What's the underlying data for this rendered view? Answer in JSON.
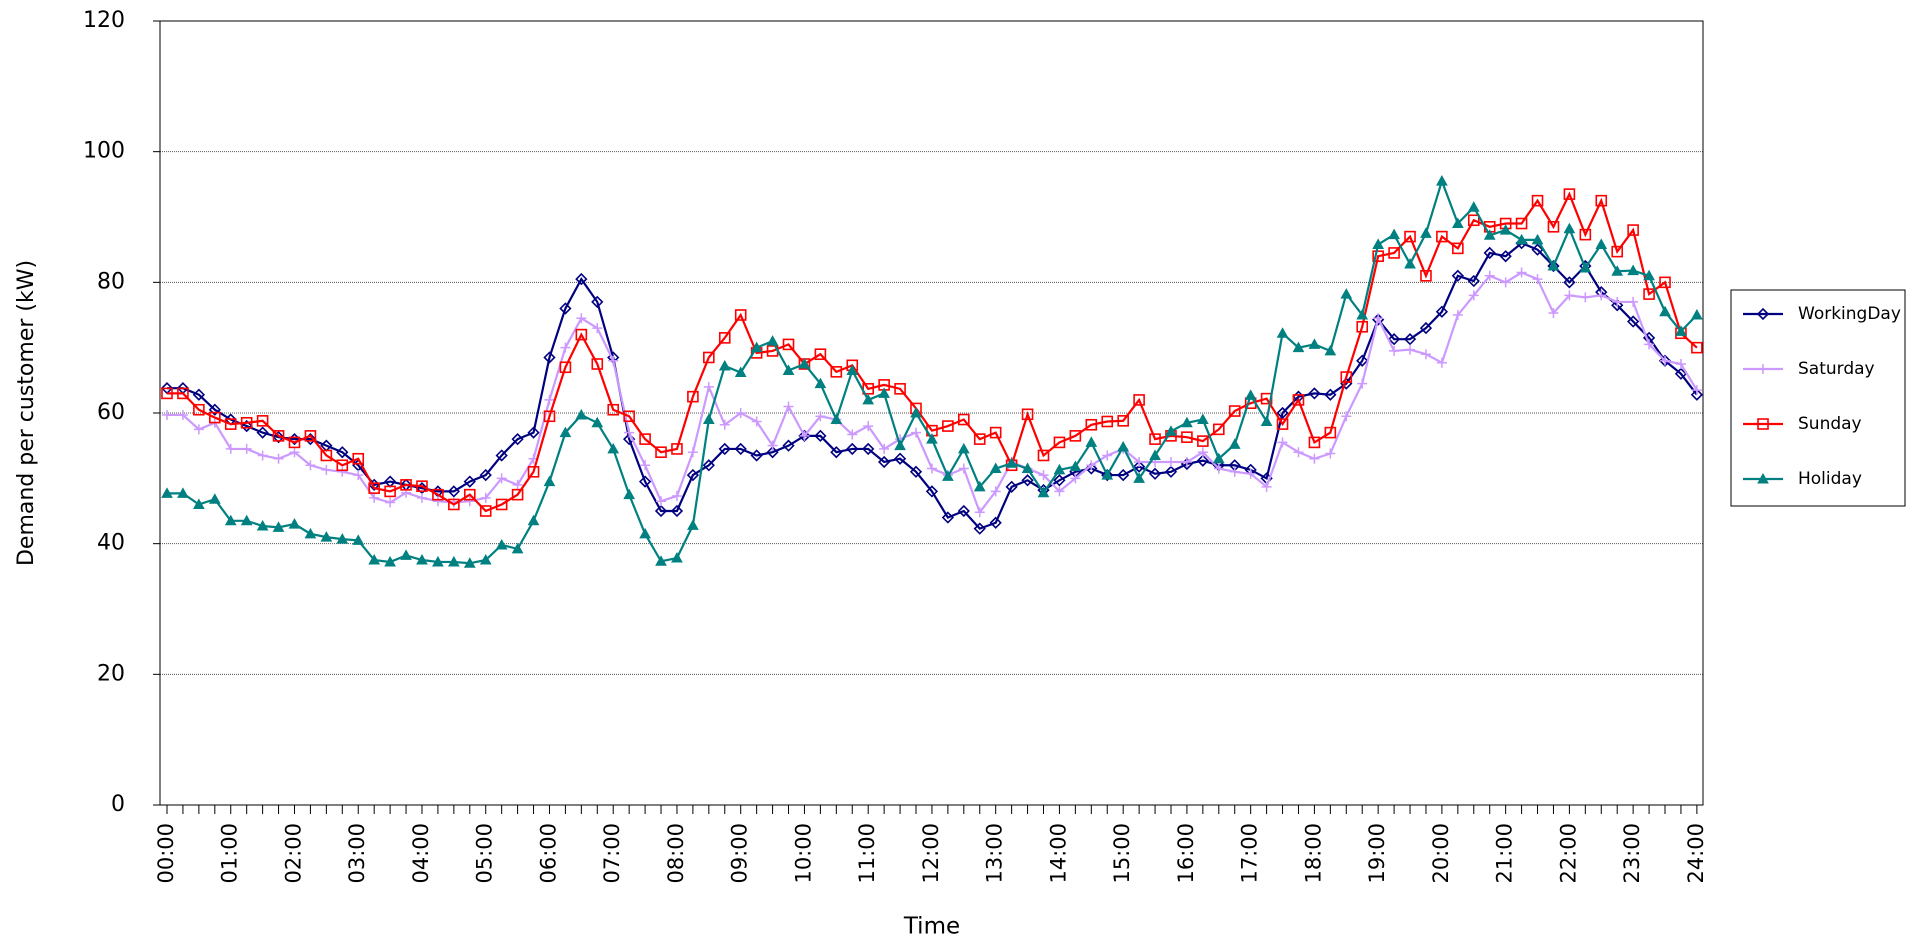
{
  "chart_data": {
    "type": "line",
    "x_label": "Time",
    "y_label": "Demand per customer (kW)",
    "categories": [
      "00:00",
      null,
      null,
      null,
      "01:00",
      null,
      null,
      null,
      "02:00",
      null,
      null,
      null,
      "03:00",
      null,
      null,
      null,
      "04:00",
      null,
      null,
      null,
      "05:00",
      null,
      null,
      null,
      "06:00",
      null,
      null,
      null,
      "07:00",
      null,
      null,
      null,
      "08:00",
      null,
      null,
      null,
      "09:00",
      null,
      null,
      null,
      "10:00",
      null,
      null,
      null,
      "11:00",
      null,
      null,
      null,
      "12:00",
      null,
      null,
      null,
      "13:00",
      null,
      null,
      null,
      "14:00",
      null,
      null,
      null,
      "15:00",
      null,
      null,
      null,
      "16:00",
      null,
      null,
      null,
      "17:00",
      null,
      null,
      null,
      "18:00",
      null,
      null,
      null,
      "19:00",
      null,
      null,
      null,
      "20:00",
      null,
      null,
      null,
      "21:00",
      null,
      null,
      null,
      "22:00",
      null,
      null,
      null,
      "23:00",
      null,
      null,
      null,
      "24:00"
    ],
    "series": [
      {
        "name": "WorkingDay",
        "color": "#000080",
        "marker": "diamond",
        "values": [
          63.8,
          63.8,
          62.8,
          60.5,
          59,
          58,
          57,
          56.3,
          56,
          56,
          55,
          54,
          52,
          49,
          49.5,
          49,
          48.5,
          48,
          48,
          49.5,
          50.5,
          53.5,
          56,
          57,
          68.5,
          76,
          80.5,
          77,
          68.5,
          56,
          49.5,
          45,
          45,
          50.5,
          52,
          54.5,
          54.5,
          53.5,
          54,
          55,
          56.5,
          56.5,
          54,
          54.5,
          54.5,
          52.5,
          53,
          51,
          48,
          44,
          45,
          42.3,
          43.2,
          48.7,
          49.7,
          48.2,
          49.7,
          51,
          51.5,
          50.5,
          50.5,
          51.8,
          50.7,
          51,
          52.2,
          52.7,
          52,
          52,
          51.3,
          50,
          60,
          62.5,
          63,
          62.8,
          64.5,
          68,
          74.3,
          71.3,
          71.3,
          73,
          75.5,
          81,
          80.2,
          84.5,
          84,
          86,
          85,
          82.5,
          80,
          82.5,
          78.5,
          76.5,
          74,
          71.5,
          68,
          66,
          62.8
        ]
      },
      {
        "name": "Saturday",
        "color": "#cc99ff",
        "marker": "plus",
        "values": [
          59.7,
          59.7,
          57.5,
          58.5,
          54.5,
          54.5,
          53.5,
          53,
          54,
          52,
          51.3,
          51,
          50.5,
          47,
          46.3,
          47.8,
          47,
          46.5,
          46.3,
          46.5,
          47,
          50,
          49,
          53,
          62,
          70,
          74.5,
          73,
          68,
          57,
          52,
          46.5,
          47.3,
          54,
          64,
          58.2,
          60,
          58.7,
          55,
          61,
          56.5,
          59.5,
          59,
          56.7,
          58,
          54.5,
          56,
          57,
          51.5,
          50.5,
          51.5,
          44.8,
          48,
          52.5,
          51.5,
          50.5,
          48,
          50,
          52,
          53.5,
          54.5,
          52.5,
          52.5,
          52.5,
          52.5,
          54,
          51.5,
          51,
          50.7,
          48.7,
          55.5,
          54,
          53,
          53.8,
          59.5,
          64.5,
          74.5,
          69.5,
          69.7,
          69,
          67.7,
          75,
          78,
          81,
          80,
          81.5,
          80.5,
          75.3,
          78,
          77.7,
          78,
          77,
          77,
          70.5,
          68,
          67.5,
          63.5
        ]
      },
      {
        "name": "Sunday",
        "color": "#ff0000",
        "marker": "square",
        "values": [
          63,
          63,
          60.5,
          59.3,
          58.3,
          58.5,
          58.8,
          56.5,
          55.5,
          56.5,
          53.5,
          52,
          53,
          48.5,
          48,
          49,
          48.8,
          47.5,
          46,
          47.5,
          45,
          46,
          47.5,
          51,
          59.5,
          67,
          72,
          67.5,
          60.5,
          59.5,
          56,
          54,
          54.5,
          62.5,
          68.5,
          71.5,
          75,
          69.2,
          69.5,
          70.5,
          67.5,
          69,
          66.3,
          67.3,
          63.7,
          64.3,
          63.7,
          60.7,
          57.3,
          58,
          59,
          56,
          57,
          52,
          59.8,
          53.5,
          55.5,
          56.5,
          58.2,
          58.7,
          58.8,
          62,
          56,
          56.5,
          56.3,
          55.7,
          57.5,
          60.3,
          61.5,
          62.2,
          58.3,
          62,
          55.5,
          57,
          65.5,
          73.2,
          84,
          84.5,
          87,
          81,
          87,
          85.2,
          89.5,
          88.5,
          89,
          89,
          92.5,
          88.5,
          93.5,
          87.3,
          92.5,
          84.7,
          88,
          78.2,
          80,
          72.2,
          70
        ]
      },
      {
        "name": "Holiday",
        "color": "#008080",
        "marker": "triangle",
        "values": [
          47.7,
          47.7,
          46,
          46.8,
          43.5,
          43.5,
          42.7,
          42.5,
          43,
          41.5,
          41,
          40.7,
          40.5,
          37.5,
          37.2,
          38.2,
          37.5,
          37.2,
          37.2,
          37,
          37.5,
          39.8,
          39.2,
          43.5,
          49.5,
          57,
          59.7,
          58.5,
          54.5,
          47.5,
          41.5,
          37.3,
          37.8,
          42.8,
          59,
          67.2,
          66.2,
          70,
          71,
          66.5,
          67.5,
          64.5,
          59,
          66.5,
          62,
          63,
          55,
          60,
          56,
          50.3,
          54.5,
          48.7,
          51.5,
          52.3,
          51.5,
          47.8,
          51.3,
          51.8,
          55.5,
          50.5,
          54.8,
          50,
          53.5,
          57.2,
          58.5,
          59,
          53,
          55.2,
          62.7,
          58.7,
          72.2,
          70,
          70.5,
          69.5,
          78.2,
          75,
          85.8,
          87.3,
          82.8,
          87.5,
          95.5,
          89,
          91.5,
          87.2,
          88,
          86.5,
          86.5,
          82.5,
          88.2,
          82.2,
          85.8,
          81.7,
          81.8,
          81,
          75.5,
          72.5,
          75
        ]
      }
    ],
    "ylim": [
      0,
      120
    ],
    "yticks": [
      0,
      20,
      40,
      60,
      80,
      100,
      120
    ],
    "grid": true,
    "legend": "right"
  }
}
